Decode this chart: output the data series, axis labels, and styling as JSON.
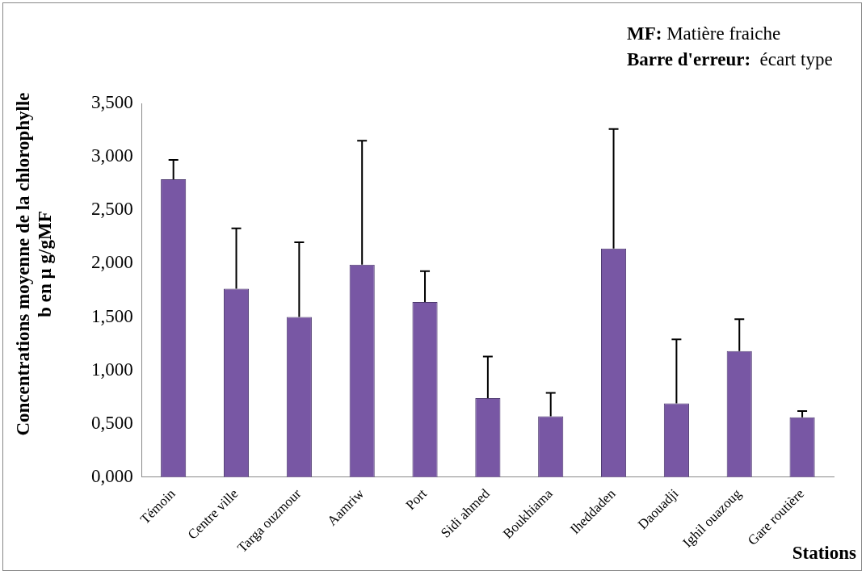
{
  "chart_data": {
    "type": "bar",
    "xlabel": "Stations",
    "ylabel": "Concentrations moyenne de la chlorophylle b en µ g/gMF",
    "categories": [
      "Témoin",
      "Centre ville",
      "Targa ouzmour",
      "Aamriw",
      "Port",
      "Sidi ahmed",
      "Boukhiama",
      "Iheddaden",
      "Daouadji",
      "Ighil ouazoug",
      "Gare routière"
    ],
    "values": [
      2.79,
      1.765,
      1.5,
      1.99,
      1.64,
      0.74,
      0.57,
      2.14,
      0.69,
      1.18,
      0.56
    ],
    "errors": [
      [
        2.79,
        2.97
      ],
      [
        1.765,
        2.33
      ],
      [
        1.5,
        2.2
      ],
      [
        1.99,
        3.15
      ],
      [
        1.64,
        1.93
      ],
      [
        0.74,
        1.13
      ],
      [
        0.57,
        0.79
      ],
      [
        2.14,
        3.26
      ],
      [
        0.69,
        1.29
      ],
      [
        1.18,
        1.48
      ],
      [
        0.56,
        0.62
      ]
    ],
    "color": "#7857a4",
    "ylim": [
      0,
      3.5
    ],
    "yticks": [
      {
        "value": 0,
        "label": "0,000"
      },
      {
        "value": 0.5,
        "label": "0,500"
      },
      {
        "value": 1,
        "label": "1,000"
      },
      {
        "value": 1.5,
        "label": "1,500"
      },
      {
        "value": 2,
        "label": "2,000"
      },
      {
        "value": 2.5,
        "label": "2,500"
      },
      {
        "value": 3,
        "label": "3,000"
      },
      {
        "value": 3.5,
        "label": "3,500"
      }
    ],
    "annotations": [
      "MF: Matière fraiche",
      "Barre d'erreur:  écart type"
    ]
  }
}
